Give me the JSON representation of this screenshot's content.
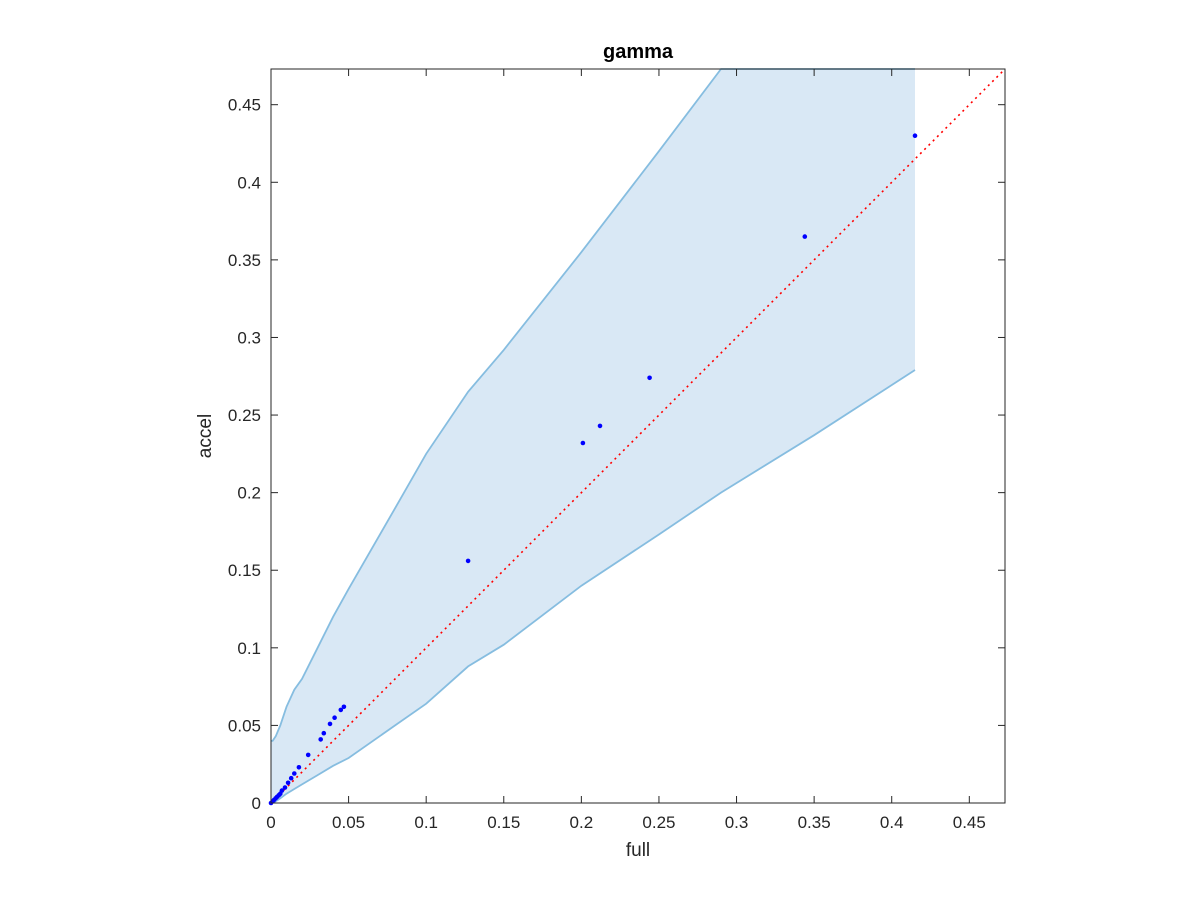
{
  "chart_data": {
    "type": "scatter",
    "title": "gamma",
    "xlabel": "full",
    "ylabel": "accel",
    "xlim": [
      0,
      0.473
    ],
    "ylim": [
      0,
      0.473
    ],
    "xticks": [
      "0",
      "0.05",
      "0.1",
      "0.15",
      "0.2",
      "0.25",
      "0.3",
      "0.35",
      "0.4",
      "0.45"
    ],
    "yticks": [
      "0",
      "0.05",
      "0.1",
      "0.15",
      "0.2",
      "0.25",
      "0.3",
      "0.35",
      "0.4",
      "0.45"
    ],
    "tick_values": [
      0,
      0.05,
      0.1,
      0.15,
      0.2,
      0.25,
      0.3,
      0.35,
      0.4,
      0.45
    ],
    "grid": false,
    "colors": {
      "points": "#0000ff",
      "reference_line": "#ff0000",
      "band_fill": "#d9e8f5",
      "band_edge": "#86bde0",
      "axes": "#262626"
    },
    "band": {
      "x": [
        0,
        0.001,
        0.003,
        0.006,
        0.01,
        0.015,
        0.02,
        0.03,
        0.04,
        0.05,
        0.08,
        0.1,
        0.127,
        0.15,
        0.2,
        0.25,
        0.29,
        0.35,
        0.415
      ],
      "upper": [
        0.04,
        0.04,
        0.043,
        0.05,
        0.062,
        0.073,
        0.08,
        0.1,
        0.12,
        0.138,
        0.19,
        0.225,
        0.265,
        0.292,
        0.355,
        0.42,
        0.473,
        0.473,
        0.473
      ],
      "lower": [
        0,
        0,
        0.001,
        0.003,
        0.006,
        0.009,
        0.012,
        0.018,
        0.024,
        0.029,
        0.05,
        0.064,
        0.088,
        0.102,
        0.14,
        0.173,
        0.2,
        0.237,
        0.279
      ]
    },
    "reference_line": {
      "x": [
        0,
        0.473
      ],
      "y": [
        0,
        0.473
      ]
    },
    "series": [
      {
        "x": [
          0,
          0.001,
          0.002,
          0.003,
          0.004,
          0.005,
          0.006,
          0.007,
          0.009,
          0.011,
          0.013,
          0.015,
          0.018,
          0.024,
          0.032,
          0.034,
          0.038,
          0.041,
          0.045,
          0.047,
          0.127,
          0.201,
          0.212,
          0.244,
          0.344,
          0.415
        ],
        "y": [
          0,
          0.001,
          0.002,
          0.003,
          0.004,
          0.005,
          0.006,
          0.008,
          0.01,
          0.013,
          0.016,
          0.019,
          0.023,
          0.031,
          0.041,
          0.045,
          0.051,
          0.055,
          0.06,
          0.062,
          0.156,
          0.232,
          0.243,
          0.274,
          0.365,
          0.43
        ]
      }
    ]
  }
}
